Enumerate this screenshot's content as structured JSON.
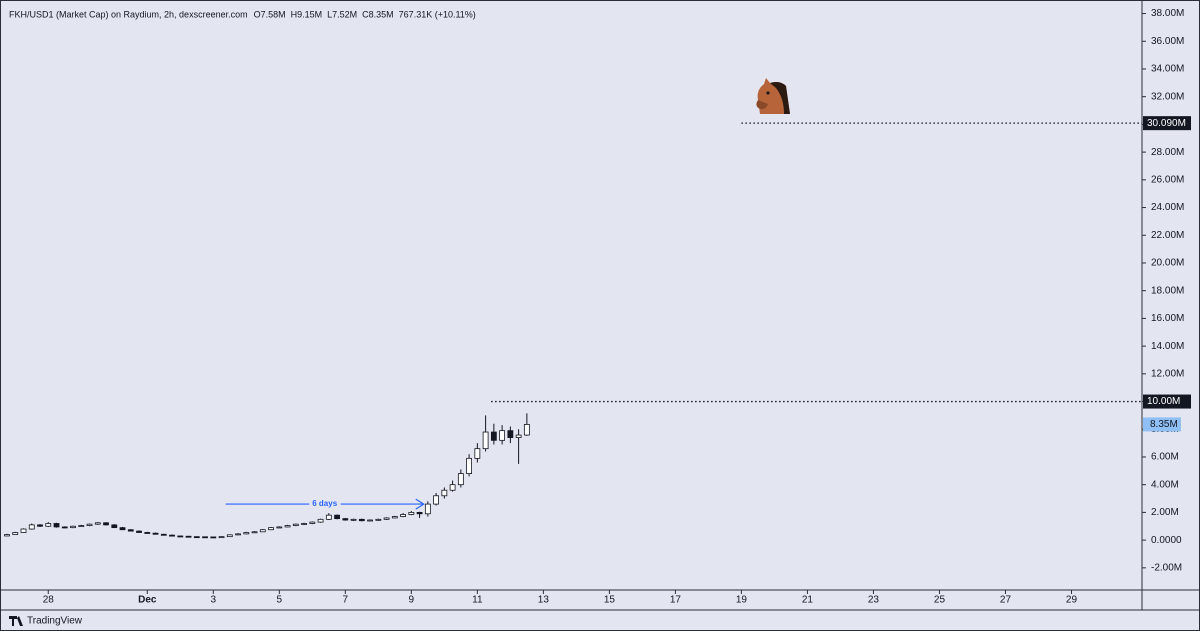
{
  "chart_data": {
    "type": "candlestick",
    "title": "FKH/USD1 (Market Cap) on Raydium, 2h, dexscreener.com",
    "ohlc_labels": [
      "O7.58M",
      "H9.15M",
      "L7.52M",
      "C8.35M",
      "767.31K (+10.11%)"
    ],
    "x": [
      "11-26 18",
      "11-27 00",
      "11-27 06",
      "11-27 12",
      "11-27 18",
      "11-28 00",
      "11-28 06",
      "11-28 12",
      "11-28 18",
      "11-29 00",
      "11-29 06",
      "11-29 12",
      "11-29 18",
      "11-30 00",
      "11-30 06",
      "11-30 12",
      "11-30 18",
      "12-01 00",
      "12-01 06",
      "12-01 12",
      "12-01 18",
      "12-02 00",
      "12-02 06",
      "12-02 12",
      "12-02 18",
      "12-03 00",
      "12-03 06",
      "12-03 12",
      "12-03 18",
      "12-04 00",
      "12-04 06",
      "12-04 12",
      "12-04 18",
      "12-05 00",
      "12-05 06",
      "12-05 12",
      "12-05 18",
      "12-06 00",
      "12-06 06",
      "12-06 12",
      "12-06 18",
      "12-07 00",
      "12-07 06",
      "12-07 12",
      "12-07 18",
      "12-08 00",
      "12-08 06",
      "12-08 12",
      "12-08 18",
      "12-09 00",
      "12-09 06",
      "12-09 12",
      "12-09 18",
      "12-10 00",
      "12-10 06",
      "12-10 12",
      "12-10 18",
      "12-11 00",
      "12-11 06",
      "12-11 12",
      "12-11 18",
      "12-12 00",
      "12-12 06",
      "12-12 12"
    ],
    "open": [
      0.3,
      0.4,
      0.55,
      0.8,
      1.1,
      1.0,
      1.2,
      0.95,
      0.9,
      1.0,
      1.05,
      1.15,
      1.25,
      1.1,
      0.9,
      0.75,
      0.65,
      0.55,
      0.5,
      0.42,
      0.36,
      0.3,
      0.28,
      0.25,
      0.24,
      0.23,
      0.22,
      0.25,
      0.38,
      0.45,
      0.55,
      0.6,
      0.75,
      0.9,
      0.95,
      1.05,
      1.15,
      1.2,
      1.3,
      1.5,
      1.8,
      1.55,
      1.45,
      1.5,
      1.4,
      1.45,
      1.5,
      1.6,
      1.7,
      1.85,
      2.0,
      1.9,
      2.6,
      3.2,
      3.6,
      4.0,
      4.8,
      5.9,
      6.6,
      7.8,
      7.2,
      7.9,
      7.4,
      7.58
    ],
    "high": [
      0.45,
      0.6,
      0.85,
      1.2,
      1.15,
      1.3,
      1.25,
      1.0,
      1.05,
      1.1,
      1.2,
      1.3,
      1.3,
      1.15,
      0.95,
      0.8,
      0.7,
      0.6,
      0.55,
      0.46,
      0.4,
      0.33,
      0.3,
      0.28,
      0.26,
      0.25,
      0.28,
      0.42,
      0.5,
      0.6,
      0.65,
      0.8,
      0.95,
      1.0,
      1.1,
      1.2,
      1.25,
      1.35,
      1.55,
      1.95,
      1.85,
      1.6,
      1.55,
      1.55,
      1.5,
      1.55,
      1.65,
      1.75,
      1.95,
      2.1,
      2.05,
      2.8,
      3.4,
      3.8,
      4.3,
      5.1,
      6.2,
      7.0,
      9.0,
      8.4,
      8.3,
      8.2,
      8.0,
      9.15
    ],
    "low": [
      0.28,
      0.38,
      0.52,
      0.75,
      0.95,
      0.95,
      0.9,
      0.85,
      0.86,
      0.95,
      1.0,
      1.1,
      1.05,
      0.88,
      0.72,
      0.62,
      0.52,
      0.48,
      0.4,
      0.34,
      0.28,
      0.26,
      0.24,
      0.22,
      0.21,
      0.2,
      0.2,
      0.23,
      0.35,
      0.42,
      0.52,
      0.58,
      0.72,
      0.86,
      0.92,
      1.0,
      1.1,
      1.15,
      1.25,
      1.45,
      1.5,
      1.4,
      1.38,
      1.35,
      1.36,
      1.4,
      1.46,
      1.58,
      1.65,
      1.8,
      1.6,
      1.7,
      2.5,
      3.0,
      3.5,
      3.8,
      4.6,
      5.6,
      6.4,
      6.9,
      6.9,
      7.0,
      5.5,
      7.52
    ],
    "close": [
      0.4,
      0.55,
      0.8,
      1.1,
      1.0,
      1.2,
      0.95,
      0.9,
      1.0,
      1.05,
      1.15,
      1.25,
      1.1,
      0.9,
      0.75,
      0.65,
      0.55,
      0.5,
      0.42,
      0.36,
      0.3,
      0.28,
      0.25,
      0.24,
      0.23,
      0.22,
      0.25,
      0.38,
      0.45,
      0.55,
      0.6,
      0.75,
      0.9,
      0.95,
      1.05,
      1.15,
      1.2,
      1.3,
      1.5,
      1.8,
      1.55,
      1.45,
      1.5,
      1.4,
      1.45,
      1.5,
      1.6,
      1.7,
      1.85,
      2.0,
      1.9,
      2.6,
      3.2,
      3.6,
      4.0,
      4.8,
      5.9,
      6.6,
      7.8,
      7.2,
      7.9,
      7.4,
      7.58,
      8.35
    ],
    "up_color": "#ffffff",
    "down_color": "#131722",
    "wick_color": "#131722",
    "xlim": [
      "11-26 18",
      "12-31 04"
    ],
    "xticks": [
      {
        "value": "11-28",
        "label": "28"
      },
      {
        "value": "12-01",
        "label": "Dec"
      },
      {
        "value": "12-03",
        "label": "3"
      },
      {
        "value": "12-05",
        "label": "5"
      },
      {
        "value": "12-07",
        "label": "7"
      },
      {
        "value": "12-09",
        "label": "9"
      },
      {
        "value": "12-11",
        "label": "11"
      },
      {
        "value": "12-13",
        "label": "13"
      },
      {
        "value": "12-15",
        "label": "15"
      },
      {
        "value": "12-17",
        "label": "17"
      },
      {
        "value": "12-19",
        "label": "19"
      },
      {
        "value": "12-21",
        "label": "21"
      },
      {
        "value": "12-23",
        "label": "23"
      },
      {
        "value": "12-25",
        "label": "25"
      },
      {
        "value": "12-27",
        "label": "27"
      },
      {
        "value": "12-29",
        "label": "29"
      }
    ],
    "ylim": [
      -3.6,
      38.4
    ],
    "yticks": [
      {
        "value": -2,
        "label": "-2.00M"
      },
      {
        "value": 0,
        "label": "0.0000"
      },
      {
        "value": 2,
        "label": "2.00M"
      },
      {
        "value": 4,
        "label": "4.00M"
      },
      {
        "value": 6,
        "label": "6.00M"
      },
      {
        "value": 8,
        "label": "8.00M"
      },
      {
        "value": 10,
        "label": "10.00M"
      },
      {
        "value": 12,
        "label": "12.00M"
      },
      {
        "value": 14,
        "label": "14.00M"
      },
      {
        "value": 16,
        "label": "16.00M"
      },
      {
        "value": 18,
        "label": "18.00M"
      },
      {
        "value": 20,
        "label": "20.00M"
      },
      {
        "value": 22,
        "label": "22.00M"
      },
      {
        "value": 24,
        "label": "24.00M"
      },
      {
        "value": 26,
        "label": "26.00M"
      },
      {
        "value": 28,
        "label": "28.00M"
      },
      {
        "value": 30,
        "label": "30.00M"
      },
      {
        "value": 32,
        "label": "32.00M"
      },
      {
        "value": 34,
        "label": "34.00M"
      },
      {
        "value": 36,
        "label": "36.00M"
      },
      {
        "value": 38,
        "label": "38.00M"
      }
    ],
    "price_lines": [
      {
        "value": 30.09,
        "label": "30.090M",
        "start": "12-19 00"
      },
      {
        "value": 10,
        "label": "10.00M",
        "start": "12-11 10"
      }
    ],
    "last_price": {
      "value": 8.35,
      "label": "8.35M",
      "color": "#8fbff5"
    },
    "annotation": {
      "text": "6 days",
      "start": "12-03 09",
      "end": "12-09 09",
      "value": 2.6,
      "color": "#2962ff"
    },
    "footer": "TradingView"
  }
}
